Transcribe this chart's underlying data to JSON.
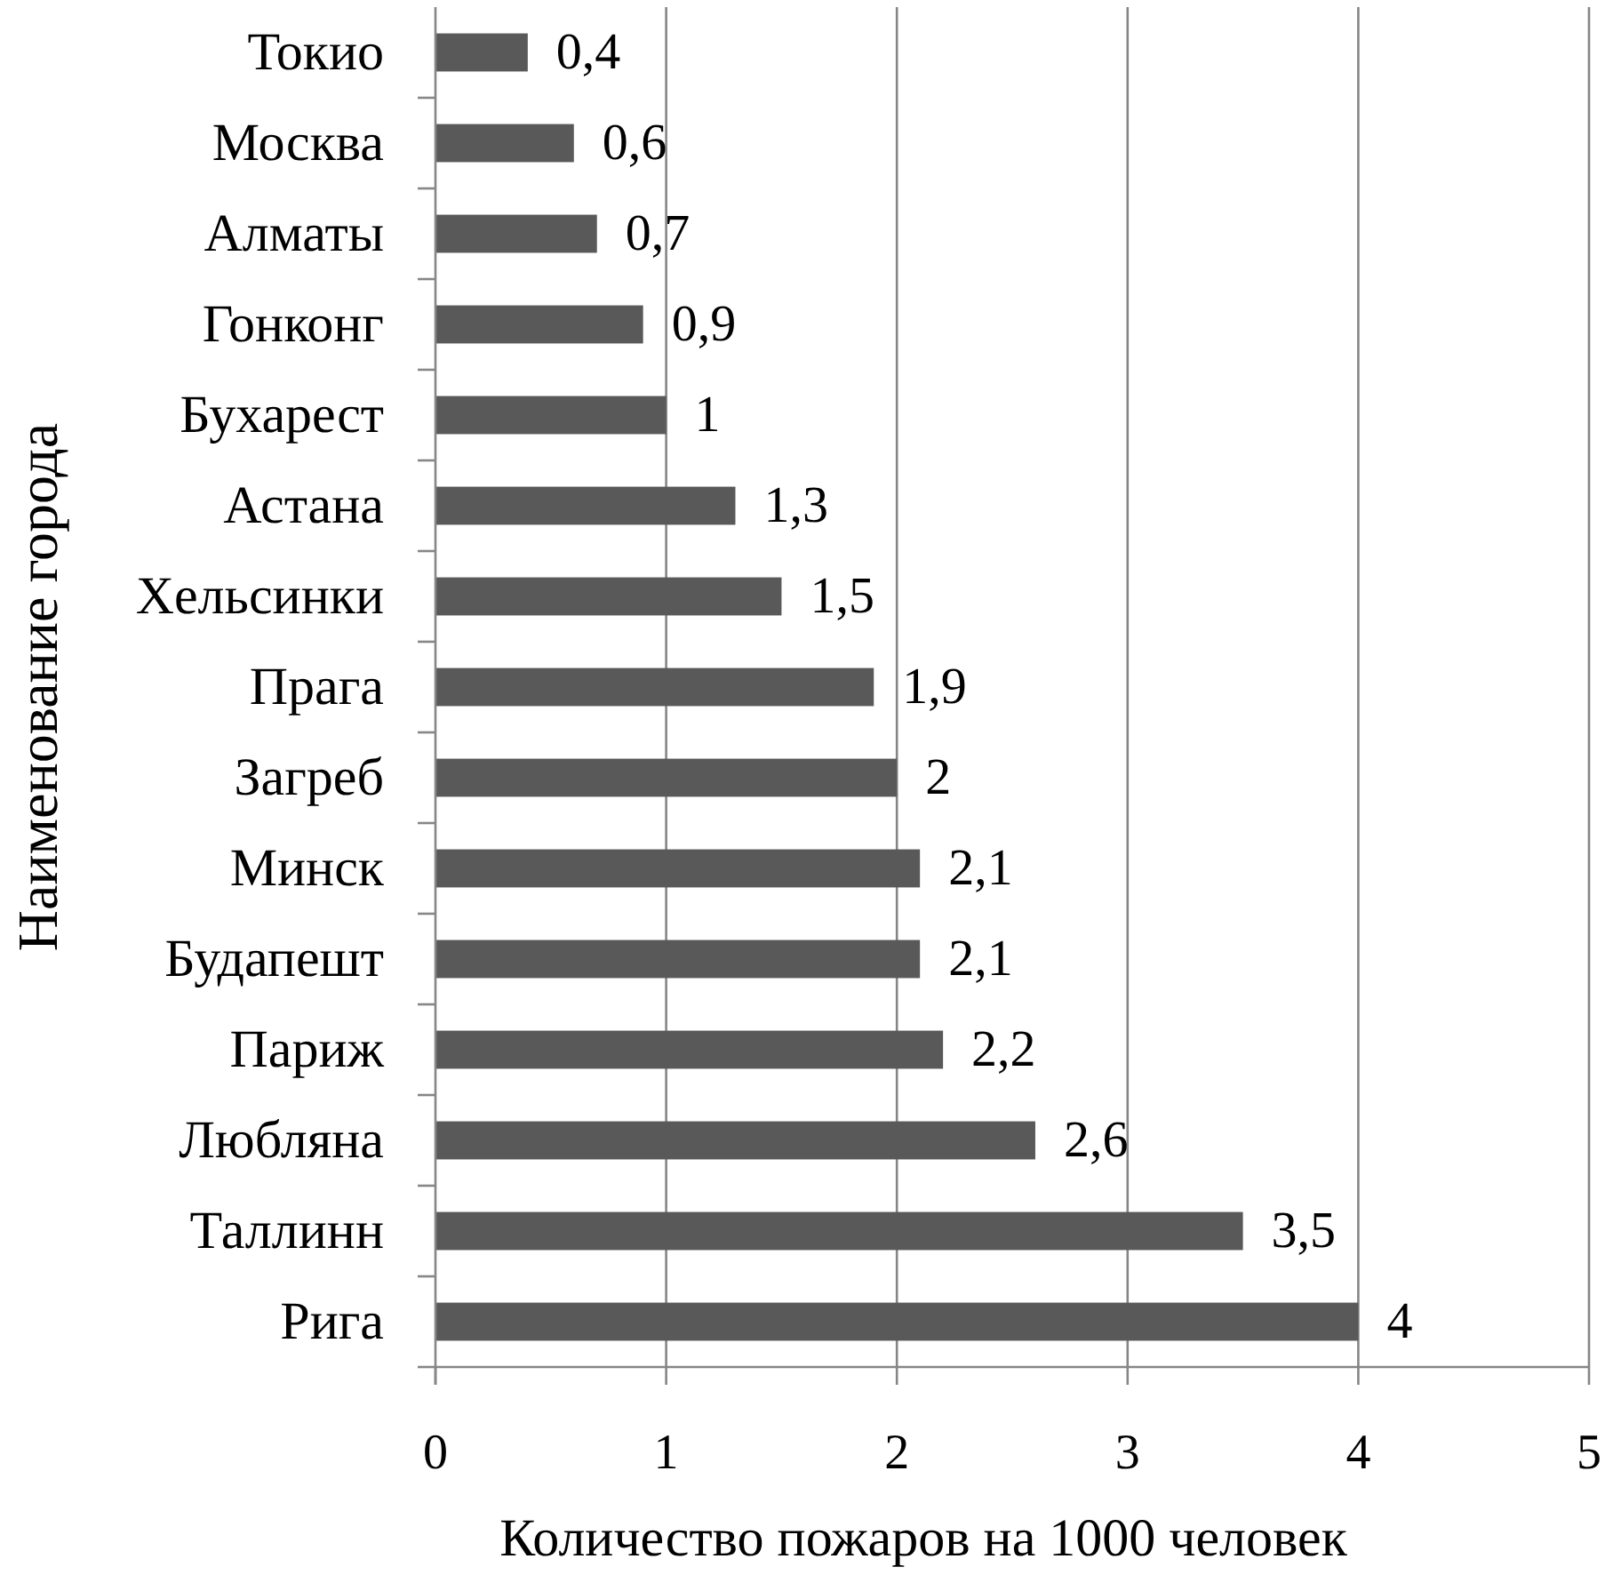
{
  "chart_data": {
    "type": "bar",
    "orientation": "horizontal",
    "categories": [
      "Токио",
      "Москва",
      "Алматы",
      "Гонконг",
      "Бухарест",
      "Астана",
      "Хельсинки",
      "Прага",
      "Загреб",
      "Минск",
      "Будапешт",
      "Париж",
      "Любляна",
      "Таллинн",
      "Рига"
    ],
    "values": [
      0.4,
      0.6,
      0.7,
      0.9,
      1,
      1.3,
      1.5,
      1.9,
      2,
      2.1,
      2.1,
      2.2,
      2.6,
      3.5,
      4
    ],
    "value_labels": [
      "0,4",
      "0,6",
      "0,7",
      "0,9",
      "1",
      "1,3",
      "1,5",
      "1,9",
      "2",
      "2,1",
      "2,1",
      "2,2",
      "2,6",
      "3,5",
      "4"
    ],
    "color": "#595959",
    "xlim": [
      0,
      5
    ],
    "xticks": [
      0,
      1,
      2,
      3,
      4,
      5
    ],
    "grid": "x",
    "xlabel": "Количество пожаров на 1000 человек",
    "ylabel": "Наименование города"
  }
}
